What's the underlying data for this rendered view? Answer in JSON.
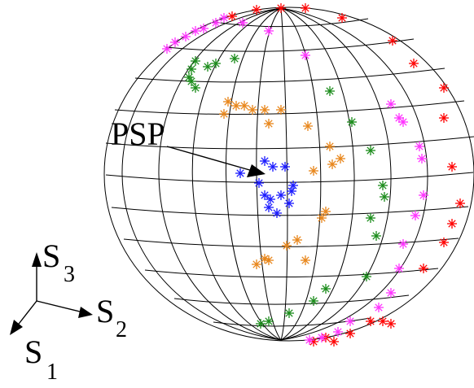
{
  "labels": {
    "psp": "PSP",
    "s1": "S",
    "s1_sub": "1",
    "s2": "S",
    "s2_sub": "2",
    "s3": "S",
    "s3_sub": "3"
  },
  "colors": {
    "grid": "#000000",
    "red": "#ff0000",
    "magenta": "#ff33ff",
    "green": "#1a8c1a",
    "orange": "#e8861a",
    "blue": "#1a1aff"
  }
}
